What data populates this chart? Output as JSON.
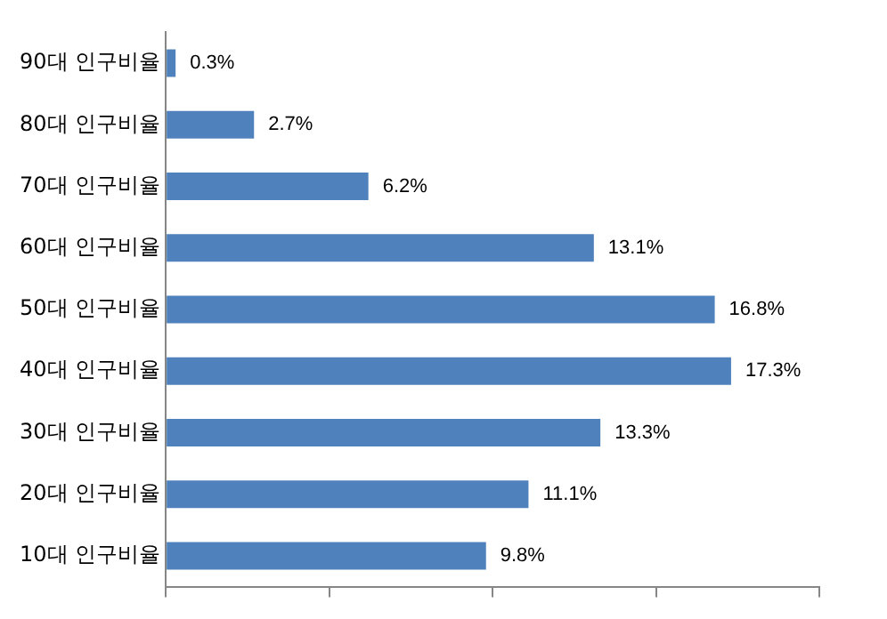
{
  "chart_data": {
    "type": "bar",
    "orientation": "horizontal",
    "categories": [
      "90대 인구비율",
      "80대 인구비율",
      "70대 인구비율",
      "60대 인구비율",
      "50대 인구비율",
      "40대 인구비율",
      "30대 인구비율",
      "20대 인구비율",
      "10대 인구비율"
    ],
    "values": [
      0.3,
      2.7,
      6.2,
      13.1,
      16.8,
      17.3,
      13.3,
      11.1,
      9.8
    ],
    "value_labels": [
      "0.3%",
      "2.7%",
      "6.2%",
      "13.1%",
      "16.8%",
      "17.3%",
      "13.3%",
      "11.1%",
      "9.8%"
    ],
    "color": "#4f81bd",
    "xlim": [
      0,
      20
    ],
    "xticks": [
      {
        "value": 0,
        "label": null
      },
      {
        "value": 5,
        "label": null
      },
      {
        "value": 10,
        "label": null
      },
      {
        "value": 15,
        "label": null
      },
      {
        "value": 20,
        "label": null
      }
    ],
    "tick_labels": "y",
    "grid": false,
    "legend": false
  }
}
